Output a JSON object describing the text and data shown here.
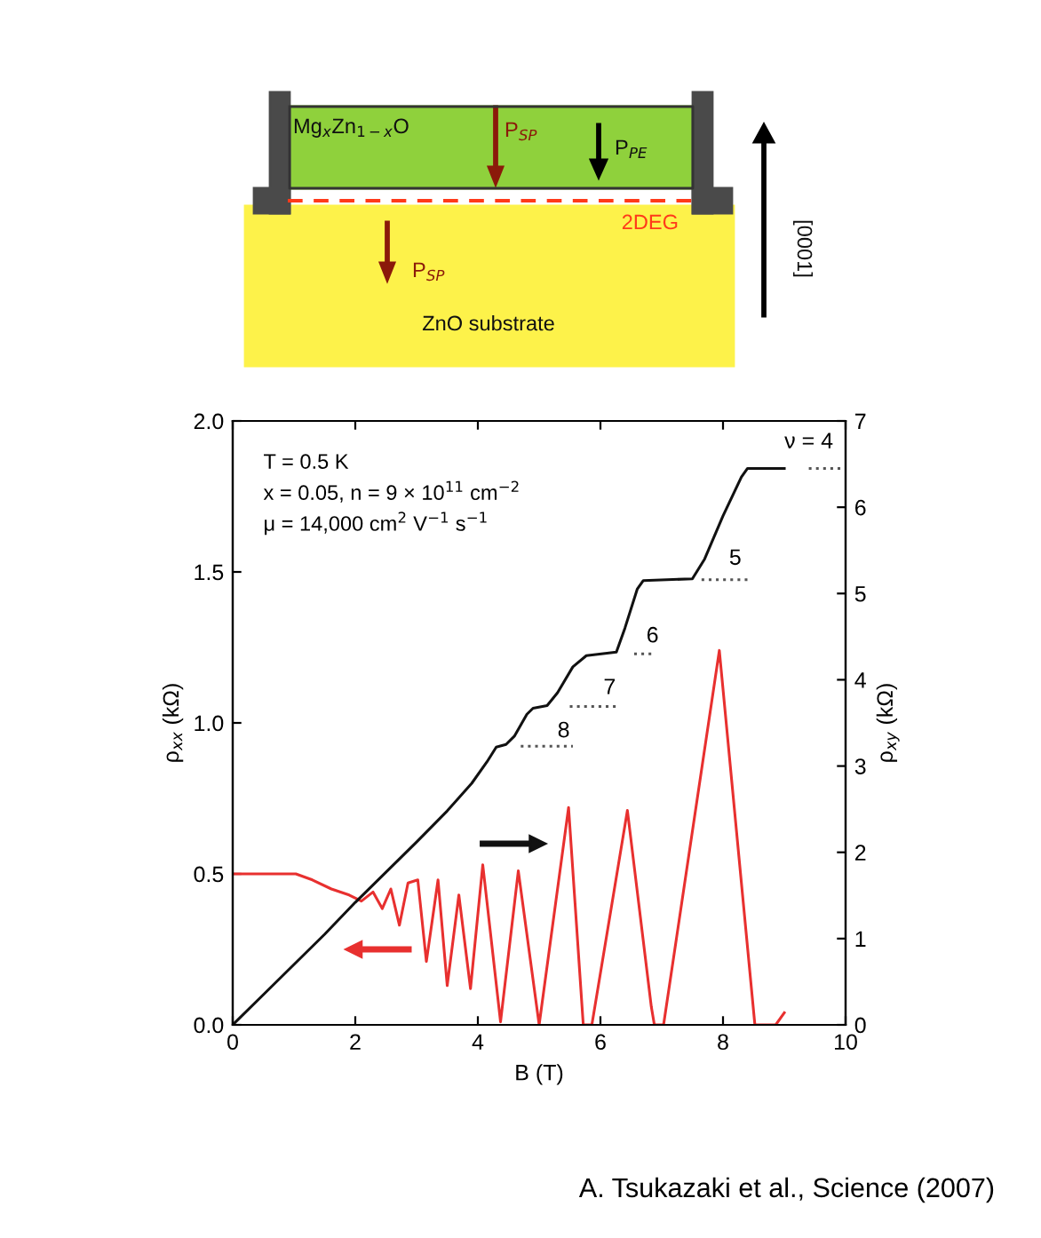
{
  "chart_data": {
    "type": "line",
    "xlabel": "B (T)",
    "ylabel": "ρ$_{xx}$ (kΩ)",
    "y2label": "ρ$_{xy}$ (kΩ)",
    "xlim": [
      0,
      10
    ],
    "xticks": [
      0,
      2,
      4,
      6,
      8,
      10
    ],
    "ylim": [
      0,
      2.0
    ],
    "yticks": [
      {
        "value": 0,
        "label": "0.0"
      },
      0.5,
      {
        "value": 1,
        "label": "1.0"
      },
      1.5,
      {
        "value": 2,
        "label": "2.0"
      }
    ],
    "y2lim": [
      0,
      7
    ],
    "y2ticks": [
      0,
      1,
      2,
      3,
      4,
      5,
      6,
      7
    ],
    "grid": false,
    "legend": false,
    "marker": "none",
    "series": [
      {
        "color": "#e8302f",
        "axis": "y",
        "line_style": "solid",
        "x": [
          0,
          0.5,
          1.03,
          1.3,
          1.61,
          1.9,
          2.1,
          2.29,
          2.44,
          2.58,
          2.72,
          2.86,
          3.02,
          3.16,
          3.35,
          3.5,
          3.69,
          3.88,
          4.08,
          4.37,
          4.66,
          5.0,
          5.48,
          5.72,
          5.86,
          6.44,
          6.83,
          6.88,
          7.03,
          7.94,
          8.52,
          8.86,
          9.0
        ],
        "values": [
          0.5,
          0.5,
          0.5,
          0.48,
          0.45,
          0.43,
          0.41,
          0.44,
          0.385,
          0.45,
          0.33,
          0.47,
          0.48,
          0.21,
          0.48,
          0.13,
          0.43,
          0.12,
          0.53,
          0.01,
          0.51,
          0.0,
          0.72,
          0.0,
          0.0,
          0.71,
          0.06,
          0.0,
          0.0,
          1.24,
          0.0,
          0.0,
          0.04
        ]
      },
      {
        "color": "#111111",
        "axis": "y2",
        "line_style": "solid",
        "x": [
          0,
          0.5,
          1,
          1.5,
          2,
          2.5,
          3,
          3.5,
          3.9,
          4.15,
          4.3,
          4.46,
          4.6,
          4.8,
          4.9,
          5.13,
          5.3,
          5.55,
          5.77,
          6.26,
          6.4,
          6.6,
          6.7,
          7.5,
          7.7,
          8.0,
          8.3,
          8.4,
          9.0
        ],
        "values": [
          0,
          0.35,
          0.7,
          1.05,
          1.42,
          1.77,
          2.12,
          2.48,
          2.8,
          3.05,
          3.22,
          3.25,
          3.35,
          3.6,
          3.67,
          3.7,
          3.85,
          4.15,
          4.28,
          4.32,
          4.6,
          5.05,
          5.15,
          5.17,
          5.4,
          5.9,
          6.35,
          6.45,
          6.45
        ]
      },
      {
        "color": "#555555",
        "axis": "y2",
        "line_style": "dotted",
        "x": [
          9.4,
          10,
          9.7,
          7.65,
          8.4,
          8.0,
          6.55,
          6.9,
          6.7,
          5.5,
          6.25,
          5.9,
          4.7,
          5.55
        ],
        "values": [
          6.45,
          6.45,
          null,
          5.16,
          5.16,
          null,
          4.3,
          4.3,
          null,
          3.69,
          3.69,
          null,
          3.23,
          3.23
        ]
      }
    ],
    "annotations": [
      "T = 0.5 K",
      "x = 0.05, n = 9 × 10$^{11}$ cm$^{−2}$",
      "μ = 14,000 cm$^{2}$ V$^{−1}$ s$^{−1}$",
      "ν = 4",
      "5",
      "6",
      "7",
      "8",
      "Mg$_{x}$Zn$_{1−x}$O",
      "P$_{SP}$",
      "P$_{PE}$",
      "2DEG",
      "P$_{SP}$",
      "ZnO substrate",
      "[0001]",
      "A. Tsukazaki et al., Science (2007)"
    ]
  }
}
